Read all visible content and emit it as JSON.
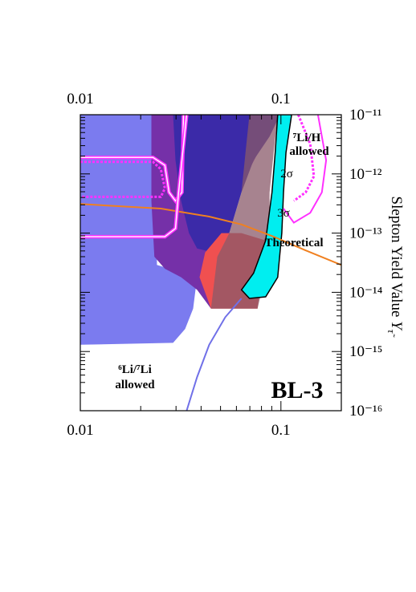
{
  "chart_data": {
    "type": "region",
    "xscale": "log",
    "yscale": "log",
    "xlim": [
      0.01,
      0.2
    ],
    "ylim": [
      1e-16,
      1e-11
    ],
    "xticks": [
      0.01,
      0.1
    ],
    "xminor": [
      0.02,
      0.03,
      0.04,
      0.05,
      0.06,
      0.07,
      0.08,
      0.09
    ],
    "yticks": [
      {
        "value": 1e-11,
        "label": "10⁻¹¹"
      },
      {
        "value": 1e-12,
        "label": "10⁻¹²"
      },
      {
        "value": 1e-13,
        "label": "10⁻¹³"
      },
      {
        "value": 1e-14,
        "label": "10⁻¹⁴"
      },
      {
        "value": 1e-15,
        "label": "10⁻¹⁵"
      },
      {
        "value": 1e-16,
        "label": "10⁻¹⁶"
      }
    ],
    "yminor": [
      2e-16,
      3e-16,
      4e-16,
      5e-16,
      6e-16,
      7e-16,
      8e-16,
      9e-16,
      2e-15,
      3e-15,
      4e-15,
      5e-15,
      6e-15,
      7e-15,
      8e-15,
      9e-15,
      2e-14,
      3e-14,
      4e-14,
      5e-14,
      6e-14,
      7e-14,
      8e-14,
      9e-14,
      2e-13,
      3e-13,
      4e-13,
      5e-13,
      6e-13,
      7e-13,
      8e-13,
      9e-13,
      2e-12,
      3e-12,
      4e-12,
      5e-12,
      6e-12,
      7e-12,
      8e-12,
      9e-12
    ],
    "ylabel": "Slepton Yield Value",
    "ylabel_symbol": "Y",
    "ylabel_sub": "τ̃",
    "series": [
      {
        "kind": "fill",
        "color": "#7b7bef",
        "x": [
          0.01,
          0.0241,
          0.0241,
          0.0382,
          0.0365,
          0.0333,
          0.029,
          0.01
        ],
        "values": [
          1e-11,
          1e-11,
          2.9e-14,
          1.8e-14,
          5.3e-15,
          2.4e-15,
          1.4e-15,
          1.3e-15
        ]
      },
      {
        "kind": "fill",
        "color": "#7530a8",
        "x": [
          0.0226,
          0.0964,
          0.0636,
          0.0482,
          0.0448,
          0.0382,
          0.0318,
          0.0264,
          0.0234,
          0.0226
        ],
        "values": [
          1e-11,
          1e-11,
          6.6e-13,
          4e-14,
          5.3e-15,
          1.1e-14,
          1.8e-14,
          2.5e-14,
          4e-14,
          3.5e-13
        ]
      },
      {
        "kind": "fill",
        "color": "#3b2aa8",
        "x": [
          0.029,
          0.0991,
          0.0878,
          0.073,
          0.0636,
          0.0553,
          0.046,
          0.0382,
          0.0348,
          0.0318,
          0.0298
        ],
        "values": [
          1e-11,
          1e-11,
          4.3e-12,
          1.7e-12,
          4.9e-13,
          1e-13,
          4.7e-14,
          5.5e-14,
          1e-13,
          3.5e-13,
          1.7e-12
        ]
      },
      {
        "kind": "fill",
        "color": "#f05050",
        "x": [
          0.0419,
          0.0505,
          0.0636,
          0.0839,
          0.0765,
          0.0448,
          0.0393
        ],
        "values": [
          4.7e-14,
          1e-13,
          1e-13,
          7.5e-14,
          5.3e-15,
          5.3e-15,
          1.8e-14
        ]
      },
      {
        "kind": "fill",
        "color": "#8a5a6a",
        "opacity": 0.75,
        "x": [
          0.0697,
          0.0964,
          0.092,
          0.0878,
          0.0878,
          0.0839,
          0.0765,
          0.0448,
          0.0482,
          0.0553,
          0.0636,
          0.0666
        ],
        "values": [
          1e-11,
          1e-11,
          2.3e-12,
          4.9e-13,
          1e-13,
          2.1e-14,
          5.3e-15,
          5.3e-15,
          4e-14,
          1e-13,
          4.9e-13,
          2.3e-12
        ]
      },
      {
        "kind": "fill",
        "color": "#00eef0",
        "outline": "#000000",
        "x": [
          0.0964,
          0.113,
          0.106,
          0.103,
          0.101,
          0.0964,
          0.0839,
          0.0697,
          0.0636,
          0.073,
          0.0839,
          0.0903,
          0.0937
        ],
        "values": [
          1e-11,
          1e-11,
          2.3e-12,
          4.9e-13,
          1e-13,
          1.8e-14,
          8.4e-15,
          7.9e-15,
          1.1e-14,
          2.1e-14,
          7.5e-14,
          4.9e-13,
          2.3e-12
        ]
      },
      {
        "kind": "line",
        "color": "#f08020",
        "x": [
          0.01,
          0.0252,
          0.0439,
          0.0636,
          0.092,
          0.133,
          0.2
        ],
        "values": [
          3.1e-13,
          2.6e-13,
          1.9e-13,
          1.4e-13,
          8.7e-14,
          5.1e-14,
          2.9e-14
        ]
      },
      {
        "kind": "line",
        "color": "#7070e8",
        "x": [
          0.0339,
          0.0382,
          0.0439,
          0.0528,
          0.0636
        ],
        "values": [
          1e-16,
          3.7e-16,
          1.3e-15,
          3.8e-15,
          7.9e-15
        ]
      },
      {
        "kind": "line",
        "color": "#ff30ff",
        "double": true,
        "x": [
          0.01,
          0.023,
          0.0264,
          0.0277,
          0.0298,
          0.0321,
          0.0327
        ],
        "values": [
          1.9e-12,
          1.9e-12,
          1.4e-12,
          4.9e-13,
          3.5e-13,
          4.9e-13,
          1e-11
        ]
      },
      {
        "kind": "line",
        "color": "#ff30ff",
        "dash": true,
        "x": [
          0.01,
          0.023,
          0.0252,
          0.0264,
          0.0252,
          0.01
        ],
        "values": [
          1.6e-12,
          1.6e-12,
          1.2e-12,
          5.7e-13,
          4.1e-13,
          4.1e-13
        ]
      },
      {
        "kind": "line",
        "color": "#ff30ff",
        "double": true,
        "x": [
          0.01,
          0.0264,
          0.0298,
          0.0309,
          0.0339
        ],
        "values": [
          8.7e-14,
          8.7e-14,
          1.2e-13,
          4.9e-13,
          1e-11
        ]
      },
      {
        "kind": "line",
        "color": "#ff30ff",
        "x": [
          0.153,
          0.168,
          0.16,
          0.14,
          0.116,
          0.103
        ],
        "values": [
          1e-11,
          1.7e-12,
          4.9e-13,
          2.2e-13,
          1.5e-13,
          2.6e-13
        ]
      },
      {
        "kind": "line",
        "color": "#ff30ff",
        "dash": true,
        "x": [
          0.122,
          0.14,
          0.146,
          0.133,
          0.116
        ],
        "values": [
          1e-11,
          3.2e-12,
          9.1e-13,
          4.9e-13,
          3.5e-13
        ]
      }
    ],
    "annotations": [
      "⁷Li/H",
      "allowed",
      "2σ",
      "3σ",
      "Theoretical",
      "⁶Li/⁷Li",
      "allowed",
      "BL-3"
    ]
  }
}
